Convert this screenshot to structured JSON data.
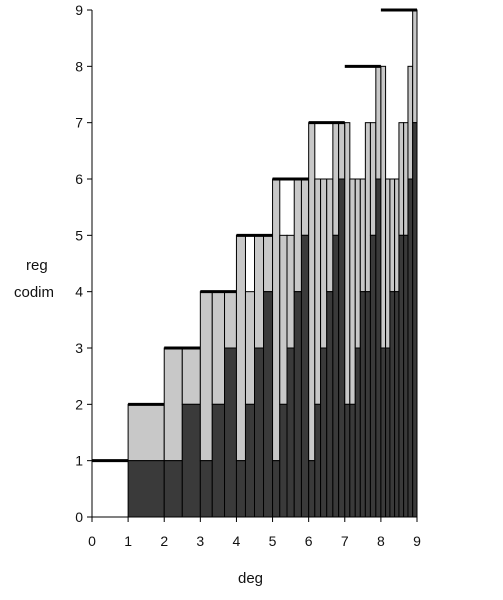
{
  "chart_data": {
    "type": "bar",
    "xlabel": "deg",
    "ylabel": [
      "reg",
      "codim"
    ],
    "xlim": [
      0,
      9
    ],
    "ylim": [
      0,
      9
    ],
    "xticks": [
      "0",
      "1",
      "2",
      "3",
      "4",
      "5",
      "6",
      "7",
      "8",
      "9"
    ],
    "yticks": [
      "0",
      "1",
      "2",
      "3",
      "4",
      "5",
      "6",
      "7",
      "8",
      "9"
    ],
    "grid": false,
    "colors": {
      "codim": "#3a3a3a",
      "reg": "#c8c8c8",
      "bound": "#000000"
    },
    "bound_segments": [
      {
        "x0": 0,
        "x1": 1,
        "y": 1
      },
      {
        "x0": 1,
        "x1": 2,
        "y": 2
      },
      {
        "x0": 2,
        "x1": 3,
        "y": 3
      },
      {
        "x0": 3,
        "x1": 4,
        "y": 4
      },
      {
        "x0": 4,
        "x1": 5,
        "y": 5
      },
      {
        "x0": 5,
        "x1": 6,
        "y": 6
      },
      {
        "x0": 6,
        "x1": 7,
        "y": 7
      },
      {
        "x0": 7,
        "x1": 8,
        "y": 8
      },
      {
        "x0": 8,
        "x1": 9,
        "y": 9
      }
    ],
    "bars": [
      {
        "x0": 1.0,
        "x1": 2.0,
        "codim": 1,
        "reg": 2
      },
      {
        "x0": 2.0,
        "x1": 2.5,
        "codim": 1,
        "reg": 3
      },
      {
        "x0": 2.5,
        "x1": 3.0,
        "codim": 2,
        "reg": 3
      },
      {
        "x0": 3.0,
        "x1": 3.33,
        "codim": 1,
        "reg": 4
      },
      {
        "x0": 3.33,
        "x1": 3.67,
        "codim": 2,
        "reg": 4
      },
      {
        "x0": 3.67,
        "x1": 4.0,
        "codim": 3,
        "reg": 4
      },
      {
        "x0": 4.0,
        "x1": 4.25,
        "codim": 1,
        "reg": 5
      },
      {
        "x0": 4.25,
        "x1": 4.5,
        "codim": 2,
        "reg": 4
      },
      {
        "x0": 4.5,
        "x1": 4.75,
        "codim": 3,
        "reg": 5
      },
      {
        "x0": 4.75,
        "x1": 5.0,
        "codim": 4,
        "reg": 5
      },
      {
        "x0": 5.0,
        "x1": 5.2,
        "codim": 1,
        "reg": 6
      },
      {
        "x0": 5.2,
        "x1": 5.4,
        "codim": 2,
        "reg": 5
      },
      {
        "x0": 5.4,
        "x1": 5.6,
        "codim": 3,
        "reg": 5
      },
      {
        "x0": 5.6,
        "x1": 5.8,
        "codim": 4,
        "reg": 6
      },
      {
        "x0": 5.8,
        "x1": 6.0,
        "codim": 5,
        "reg": 6
      },
      {
        "x0": 6.0,
        "x1": 6.17,
        "codim": 1,
        "reg": 7
      },
      {
        "x0": 6.17,
        "x1": 6.33,
        "codim": 2,
        "reg": 6
      },
      {
        "x0": 6.33,
        "x1": 6.5,
        "codim": 3,
        "reg": 6
      },
      {
        "x0": 6.5,
        "x1": 6.67,
        "codim": 4,
        "reg": 6
      },
      {
        "x0": 6.67,
        "x1": 6.83,
        "codim": 5,
        "reg": 7
      },
      {
        "x0": 6.83,
        "x1": 7.0,
        "codim": 6,
        "reg": 7
      },
      {
        "x0": 7.0,
        "x1": 7.14,
        "codim": 2,
        "reg": 7
      },
      {
        "x0": 7.14,
        "x1": 7.29,
        "codim": 2,
        "reg": 6
      },
      {
        "x0": 7.29,
        "x1": 7.43,
        "codim": 3,
        "reg": 6
      },
      {
        "x0": 7.43,
        "x1": 7.57,
        "codim": 4,
        "reg": 6
      },
      {
        "x0": 7.57,
        "x1": 7.71,
        "codim": 4,
        "reg": 7
      },
      {
        "x0": 7.71,
        "x1": 7.86,
        "codim": 5,
        "reg": 7
      },
      {
        "x0": 7.86,
        "x1": 8.0,
        "codim": 6,
        "reg": 8
      },
      {
        "x0": 8.0,
        "x1": 8.13,
        "codim": 3,
        "reg": 8
      },
      {
        "x0": 8.13,
        "x1": 8.25,
        "codim": 3,
        "reg": 6
      },
      {
        "x0": 8.25,
        "x1": 8.38,
        "codim": 4,
        "reg": 6
      },
      {
        "x0": 8.38,
        "x1": 8.5,
        "codim": 4,
        "reg": 6
      },
      {
        "x0": 8.5,
        "x1": 8.63,
        "codim": 5,
        "reg": 7
      },
      {
        "x0": 8.63,
        "x1": 8.75,
        "codim": 5,
        "reg": 7
      },
      {
        "x0": 8.75,
        "x1": 8.88,
        "codim": 6,
        "reg": 8
      },
      {
        "x0": 8.88,
        "x1": 9.0,
        "codim": 7,
        "reg": 9
      }
    ]
  }
}
